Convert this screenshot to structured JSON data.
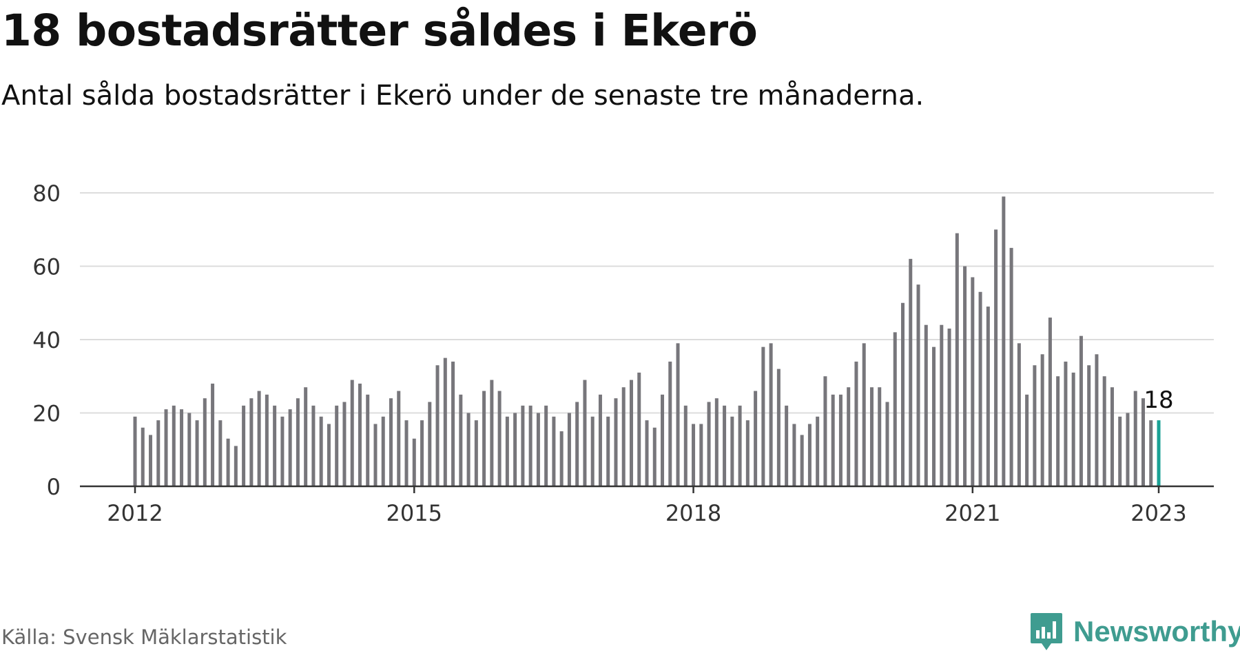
{
  "title": "18 bostadsrätter såldes i Ekerö",
  "subtitle": "Antal sålda bostadsrätter i Ekerö under de senaste tre månaderna.",
  "source": "Källa: Svensk Mäklarstatistik",
  "brand": {
    "name": "Newsworthy",
    "icon": "newsworthy-logo-icon",
    "color": "#3f9c90"
  },
  "chart_data": {
    "type": "bar",
    "x_start": "2012-01",
    "x_end": "2023-01",
    "x_ticks": [
      "2012",
      "2015",
      "2018",
      "2021",
      "2023"
    ],
    "y_ticks": [
      "0",
      "20",
      "40",
      "60",
      "80"
    ],
    "ylim": [
      0,
      80
    ],
    "grid": true,
    "bar_color": "#77767b",
    "highlight_color": "#1aa195",
    "highlight_label": "18",
    "values": [
      19,
      16,
      14,
      18,
      21,
      22,
      21,
      20,
      18,
      24,
      28,
      18,
      13,
      11,
      22,
      24,
      26,
      25,
      22,
      19,
      21,
      24,
      27,
      22,
      19,
      17,
      22,
      23,
      29,
      28,
      25,
      17,
      19,
      24,
      26,
      18,
      13,
      18,
      23,
      33,
      35,
      34,
      25,
      20,
      18,
      26,
      29,
      26,
      19,
      20,
      22,
      22,
      20,
      22,
      19,
      15,
      20,
      23,
      29,
      19,
      25,
      19,
      24,
      27,
      29,
      31,
      18,
      16,
      25,
      34,
      39,
      22,
      17,
      17,
      23,
      24,
      22,
      19,
      22,
      18,
      26,
      38,
      39,
      32,
      22,
      17,
      14,
      17,
      19,
      30,
      25,
      25,
      27,
      34,
      39,
      27,
      27,
      23,
      42,
      50,
      62,
      55,
      44,
      38,
      44,
      43,
      69,
      60,
      57,
      53,
      49,
      70,
      79,
      65,
      39,
      25,
      33,
      36,
      46,
      30,
      34,
      31,
      41,
      33,
      36,
      30,
      27,
      19,
      20,
      26,
      24,
      18,
      18
    ]
  }
}
